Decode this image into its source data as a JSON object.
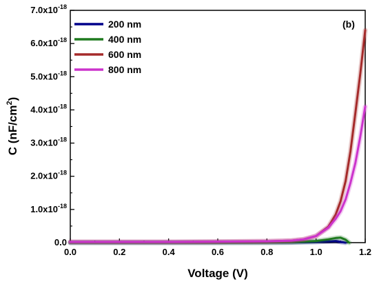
{
  "chart_data": {
    "type": "line",
    "annotation": "(b)",
    "xlabel": "Voltage (V)",
    "ylabel": {
      "main": "C (nF/cm",
      "sup": "2",
      "end": ")"
    },
    "xlim": [
      0.0,
      1.2
    ],
    "ylim": [
      0.0,
      7e-18
    ],
    "x_ticks": [
      "0.0",
      "0.2",
      "0.4",
      "0.6",
      "0.8",
      "1.0",
      "1.2"
    ],
    "y_ticks": [
      {
        "mant": "0.0",
        "exp": ""
      },
      {
        "mant": "1.0x10",
        "exp": "-18"
      },
      {
        "mant": "2.0x10",
        "exp": "-18"
      },
      {
        "mant": "3.0x10",
        "exp": "-18"
      },
      {
        "mant": "4.0x10",
        "exp": "-18"
      },
      {
        "mant": "5.0x10",
        "exp": "-18"
      },
      {
        "mant": "6.0x10",
        "exp": "-18"
      },
      {
        "mant": "7.0x10",
        "exp": "-18"
      }
    ],
    "legend_position": "top-left",
    "series": [
      {
        "name": "200 nm",
        "color": "#00008b",
        "x": [
          0.0,
          0.2,
          0.4,
          0.6,
          0.8,
          0.9,
          1.0,
          1.05,
          1.08,
          1.1,
          1.12
        ],
        "y": [
          0.0,
          0.0,
          0.0,
          0.0,
          2e-21,
          5e-21,
          2e-20,
          4e-20,
          5e-20,
          2e-20,
          0.0
        ]
      },
      {
        "name": "400 nm",
        "color": "#1f7a1f",
        "x": [
          0.0,
          0.2,
          0.4,
          0.6,
          0.8,
          0.9,
          1.0,
          1.05,
          1.08,
          1.1,
          1.12,
          1.135
        ],
        "y": [
          0.0,
          0.0,
          0.0,
          0.0,
          3e-21,
          1e-20,
          5e-20,
          1e-19,
          1.4e-19,
          1.5e-19,
          9e-20,
          0.0
        ]
      },
      {
        "name": "600 nm",
        "color": "#a52a2a",
        "x": [
          0.0,
          0.2,
          0.4,
          0.6,
          0.8,
          0.9,
          0.95,
          1.0,
          1.05,
          1.08,
          1.1,
          1.12,
          1.14,
          1.16,
          1.18,
          1.2
        ],
        "y": [
          2e-20,
          2e-20,
          2e-20,
          3e-20,
          4e-20,
          6e-20,
          1e-19,
          2e-19,
          4.8e-19,
          8.5e-19,
          1.25e-18,
          1.85e-18,
          2.75e-18,
          3.9e-18,
          5.1e-18,
          6.4e-18
        ]
      },
      {
        "name": "800 nm",
        "color": "#cc33cc",
        "x": [
          0.0,
          0.2,
          0.4,
          0.6,
          0.8,
          0.9,
          0.95,
          1.0,
          1.05,
          1.08,
          1.1,
          1.12,
          1.14,
          1.16,
          1.18,
          1.2
        ],
        "y": [
          2e-20,
          2e-20,
          2e-20,
          3e-20,
          4e-20,
          6e-20,
          1e-19,
          2e-19,
          4.5e-19,
          7.2e-19,
          9.5e-19,
          1.3e-18,
          1.8e-18,
          2.4e-18,
          3.2e-18,
          4.1e-18
        ]
      }
    ]
  }
}
